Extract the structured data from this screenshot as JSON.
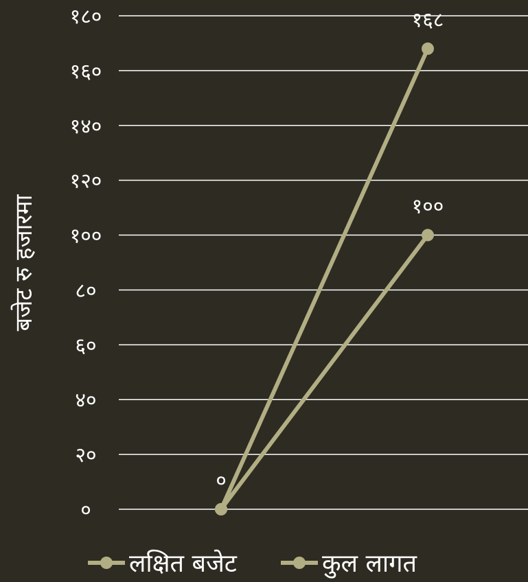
{
  "chart_data": {
    "type": "line",
    "categories": [
      "",
      ""
    ],
    "ylabel": "बजेट रु हजारमा",
    "ylim": [
      0,
      180
    ],
    "y_ticks": [
      0,
      20,
      40,
      60,
      80,
      100,
      120,
      140,
      160,
      180
    ],
    "y_tick_labels": [
      "०",
      "२०",
      "४०",
      "६०",
      "८०",
      "१००",
      "१२०",
      "१४०",
      "१६०",
      "१८०"
    ],
    "grid": true,
    "legend_position": "bottom",
    "series": [
      {
        "name": "लक्षित बजेट",
        "values": [
          0,
          168
        ],
        "data_labels": [
          "",
          "१६८"
        ],
        "color": "#b2ae84"
      },
      {
        "name": "कुल लागत",
        "values": [
          0,
          100
        ],
        "data_labels": [
          "०",
          "१००"
        ],
        "color": "#b2ae84"
      }
    ]
  }
}
